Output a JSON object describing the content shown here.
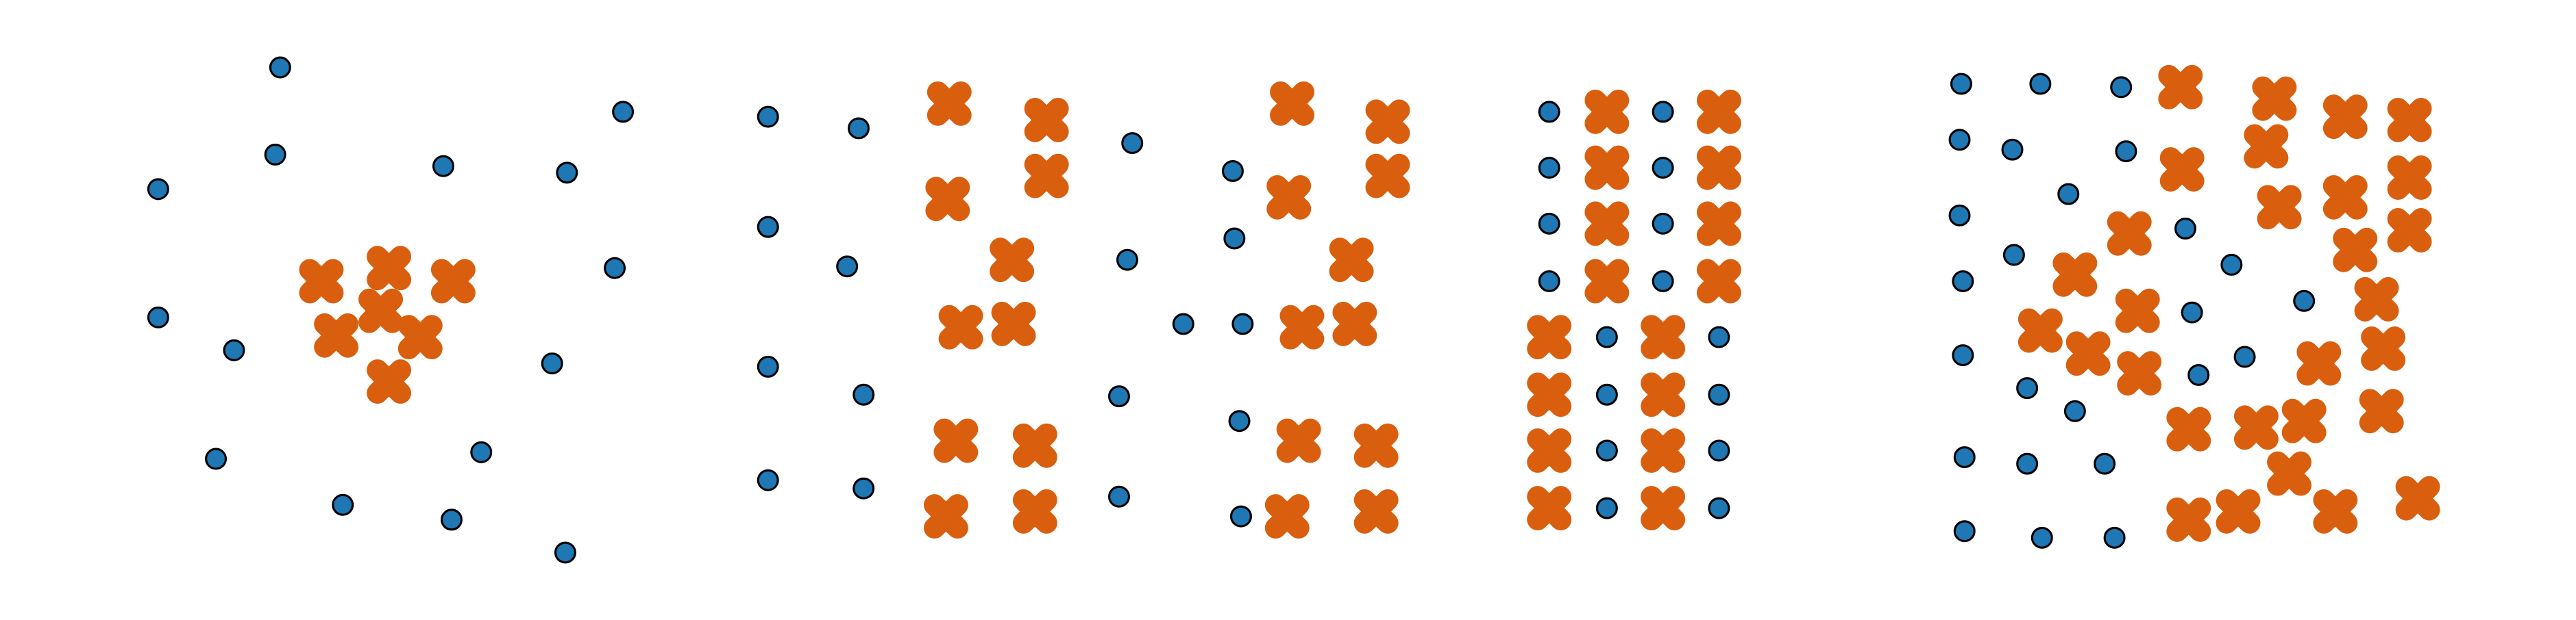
{
  "colors": {
    "dot": "#1f77b4",
    "cross": "#d95f0e",
    "outline": "#000000",
    "background": "#ffffff"
  },
  "panels": [
    {
      "name": "panel-1",
      "dots": [
        [
          170,
          41
        ],
        [
          378,
          68
        ],
        [
          167,
          94
        ],
        [
          96,
          115
        ],
        [
          269,
          101
        ],
        [
          344,
          105
        ],
        [
          373,
          163
        ],
        [
          96,
          193
        ],
        [
          142,
          213
        ],
        [
          335,
          221
        ],
        [
          131,
          279
        ],
        [
          292,
          275
        ],
        [
          208,
          307
        ],
        [
          274,
          316
        ],
        [
          343,
          336
        ]
      ],
      "crosses": [
        [
          195,
          171
        ],
        [
          236,
          163
        ],
        [
          275,
          171
        ],
        [
          231,
          189
        ],
        [
          204,
          204
        ],
        [
          255,
          205
        ],
        [
          236,
          232
        ]
      ]
    },
    {
      "name": "panel-2",
      "dots": [
        [
          466,
          71
        ],
        [
          521,
          78
        ],
        [
          466,
          138
        ],
        [
          514,
          162
        ],
        [
          466,
          223
        ],
        [
          524,
          240
        ],
        [
          466,
          292
        ],
        [
          524,
          297
        ],
        [
          687,
          87
        ],
        [
          748,
          104
        ],
        [
          684,
          158
        ],
        [
          749,
          145
        ],
        [
          718,
          197
        ],
        [
          754,
          197
        ],
        [
          679,
          241
        ],
        [
          752,
          256
        ],
        [
          679,
          302
        ],
        [
          753,
          314
        ]
      ],
      "crosses": [
        [
          576,
          63
        ],
        [
          635,
          73
        ],
        [
          635,
          107
        ],
        [
          575,
          121
        ],
        [
          614,
          158
        ],
        [
          583,
          199
        ],
        [
          615,
          197
        ],
        [
          580,
          268
        ],
        [
          628,
          271
        ],
        [
          574,
          314
        ],
        [
          628,
          311
        ],
        [
          784,
          63
        ],
        [
          842,
          74
        ],
        [
          842,
          107
        ],
        [
          782,
          120
        ],
        [
          820,
          158
        ],
        [
          790,
          199
        ],
        [
          822,
          197
        ],
        [
          788,
          268
        ],
        [
          835,
          271
        ],
        [
          781,
          314
        ],
        [
          835,
          311
        ]
      ]
    },
    {
      "name": "panel-3",
      "dots": [
        [
          940,
          68
        ],
        [
          1009,
          68
        ],
        [
          940,
          102
        ],
        [
          1009,
          102
        ],
        [
          940,
          136
        ],
        [
          1009,
          136
        ],
        [
          940,
          171
        ],
        [
          1009,
          171
        ],
        [
          975,
          205
        ],
        [
          1043,
          205
        ],
        [
          975,
          240
        ],
        [
          1043,
          240
        ],
        [
          975,
          274
        ],
        [
          1043,
          274
        ],
        [
          975,
          309
        ],
        [
          1043,
          309
        ]
      ],
      "crosses": [
        [
          975,
          68
        ],
        [
          1043,
          68
        ],
        [
          975,
          102
        ],
        [
          1043,
          102
        ],
        [
          975,
          136
        ],
        [
          1043,
          136
        ],
        [
          975,
          171
        ],
        [
          1043,
          171
        ],
        [
          940,
          205
        ],
        [
          1009,
          205
        ],
        [
          940,
          240
        ],
        [
          1009,
          240
        ],
        [
          940,
          274
        ],
        [
          1009,
          274
        ],
        [
          940,
          309
        ],
        [
          1009,
          309
        ]
      ]
    },
    {
      "name": "panel-4",
      "dots": [
        [
          1190,
          51
        ],
        [
          1238,
          51
        ],
        [
          1287,
          53
        ],
        [
          1189,
          85
        ],
        [
          1221,
          91
        ],
        [
          1290,
          92
        ],
        [
          1255,
          118
        ],
        [
          1189,
          131
        ],
        [
          1326,
          139
        ],
        [
          1222,
          155
        ],
        [
          1354,
          161
        ],
        [
          1191,
          171
        ],
        [
          1398,
          183
        ],
        [
          1330,
          190
        ],
        [
          1191,
          216
        ],
        [
          1362,
          217
        ],
        [
          1334,
          228
        ],
        [
          1230,
          236
        ],
        [
          1259,
          250
        ],
        [
          1192,
          278
        ],
        [
          1230,
          282
        ],
        [
          1277,
          282
        ],
        [
          1192,
          323
        ],
        [
          1239,
          327
        ],
        [
          1283,
          327
        ]
      ],
      "crosses": [
        [
          1323,
          53
        ],
        [
          1380,
          60
        ],
        [
          1423,
          71
        ],
        [
          1462,
          73
        ],
        [
          1375,
          89
        ],
        [
          1324,
          103
        ],
        [
          1462,
          108
        ],
        [
          1383,
          126
        ],
        [
          1423,
          120
        ],
        [
          1292,
          142
        ],
        [
          1462,
          140
        ],
        [
          1429,
          152
        ],
        [
          1259,
          167
        ],
        [
          1442,
          182
        ],
        [
          1297,
          189
        ],
        [
          1238,
          201
        ],
        [
          1446,
          212
        ],
        [
          1267,
          215
        ],
        [
          1298,
          227
        ],
        [
          1407,
          221
        ],
        [
          1445,
          250
        ],
        [
          1328,
          261
        ],
        [
          1369,
          260
        ],
        [
          1398,
          256
        ],
        [
          1389,
          288
        ],
        [
          1358,
          311
        ],
        [
          1417,
          311
        ],
        [
          1328,
          316
        ],
        [
          1467,
          303
        ]
      ]
    }
  ]
}
